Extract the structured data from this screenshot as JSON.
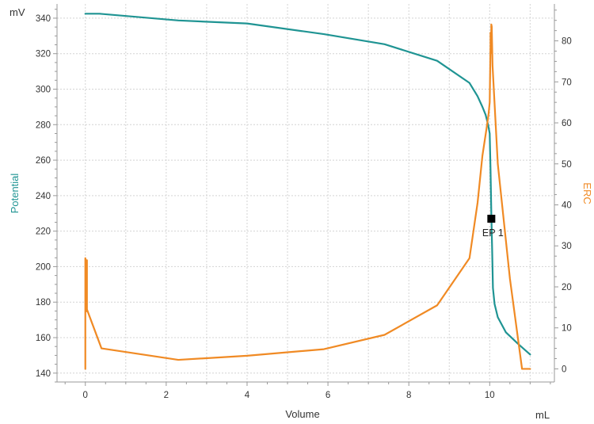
{
  "chart_data": {
    "type": "line",
    "xlabel": "Volume",
    "x_unit": "mL",
    "y_left_label": "Potential",
    "y_left_unit": "mV",
    "y_right_label": "ERC",
    "xlim": [
      -0.7,
      11.6
    ],
    "x_ticks": [
      0,
      2,
      4,
      6,
      8,
      10
    ],
    "y_left_lim": [
      135,
      348
    ],
    "y_left_ticks": [
      140,
      160,
      180,
      200,
      220,
      240,
      260,
      280,
      300,
      320,
      340
    ],
    "y_right_lim": [
      -3.2,
      89
    ],
    "y_right_ticks": [
      0,
      10,
      20,
      30,
      40,
      50,
      60,
      70,
      80
    ],
    "grid": true,
    "colors": {
      "potential": "#1f9493",
      "erc": "#f08a24",
      "marker": "#000000"
    },
    "series": [
      {
        "name": "Potential",
        "axis": "left",
        "x": [
          0.0,
          0.35,
          2.3,
          4.0,
          5.9,
          7.4,
          8.7,
          9.5,
          9.7,
          9.82,
          9.9,
          9.96,
          10.0,
          10.02,
          10.04,
          10.06,
          10.08,
          10.12,
          10.2,
          10.4,
          10.7,
          11.0
        ],
        "y": [
          342.5,
          342.5,
          338.7,
          337.0,
          331.0,
          325.3,
          316.0,
          303.5,
          296.0,
          290.0,
          285.5,
          280.0,
          275.0,
          255.0,
          230.0,
          210.0,
          188.0,
          179.0,
          171.5,
          163.0,
          156.5,
          150.5
        ]
      },
      {
        "name": "ERC",
        "axis": "right",
        "x": [
          0.0,
          0.0,
          0.02,
          0.02,
          0.04,
          0.04,
          0.4,
          2.3,
          4.0,
          5.9,
          7.4,
          8.7,
          9.5,
          9.7,
          9.82,
          9.92,
          9.97,
          10.0,
          10.02,
          10.02,
          10.04,
          10.04,
          10.05,
          10.07,
          10.2,
          10.5,
          10.8,
          11.0
        ],
        "y": [
          0,
          27.0,
          26.0,
          14.0,
          26.5,
          14.5,
          5.0,
          2.2,
          3.2,
          4.8,
          8.3,
          15.5,
          27.0,
          40.5,
          52.0,
          58.5,
          62.0,
          65.0,
          79.0,
          82.0,
          77.0,
          84.0,
          83.5,
          74.0,
          50.0,
          22.0,
          0,
          0
        ]
      }
    ],
    "annotations": [
      {
        "label": "EP 1",
        "x": 10.04,
        "y_left": 227
      }
    ]
  }
}
